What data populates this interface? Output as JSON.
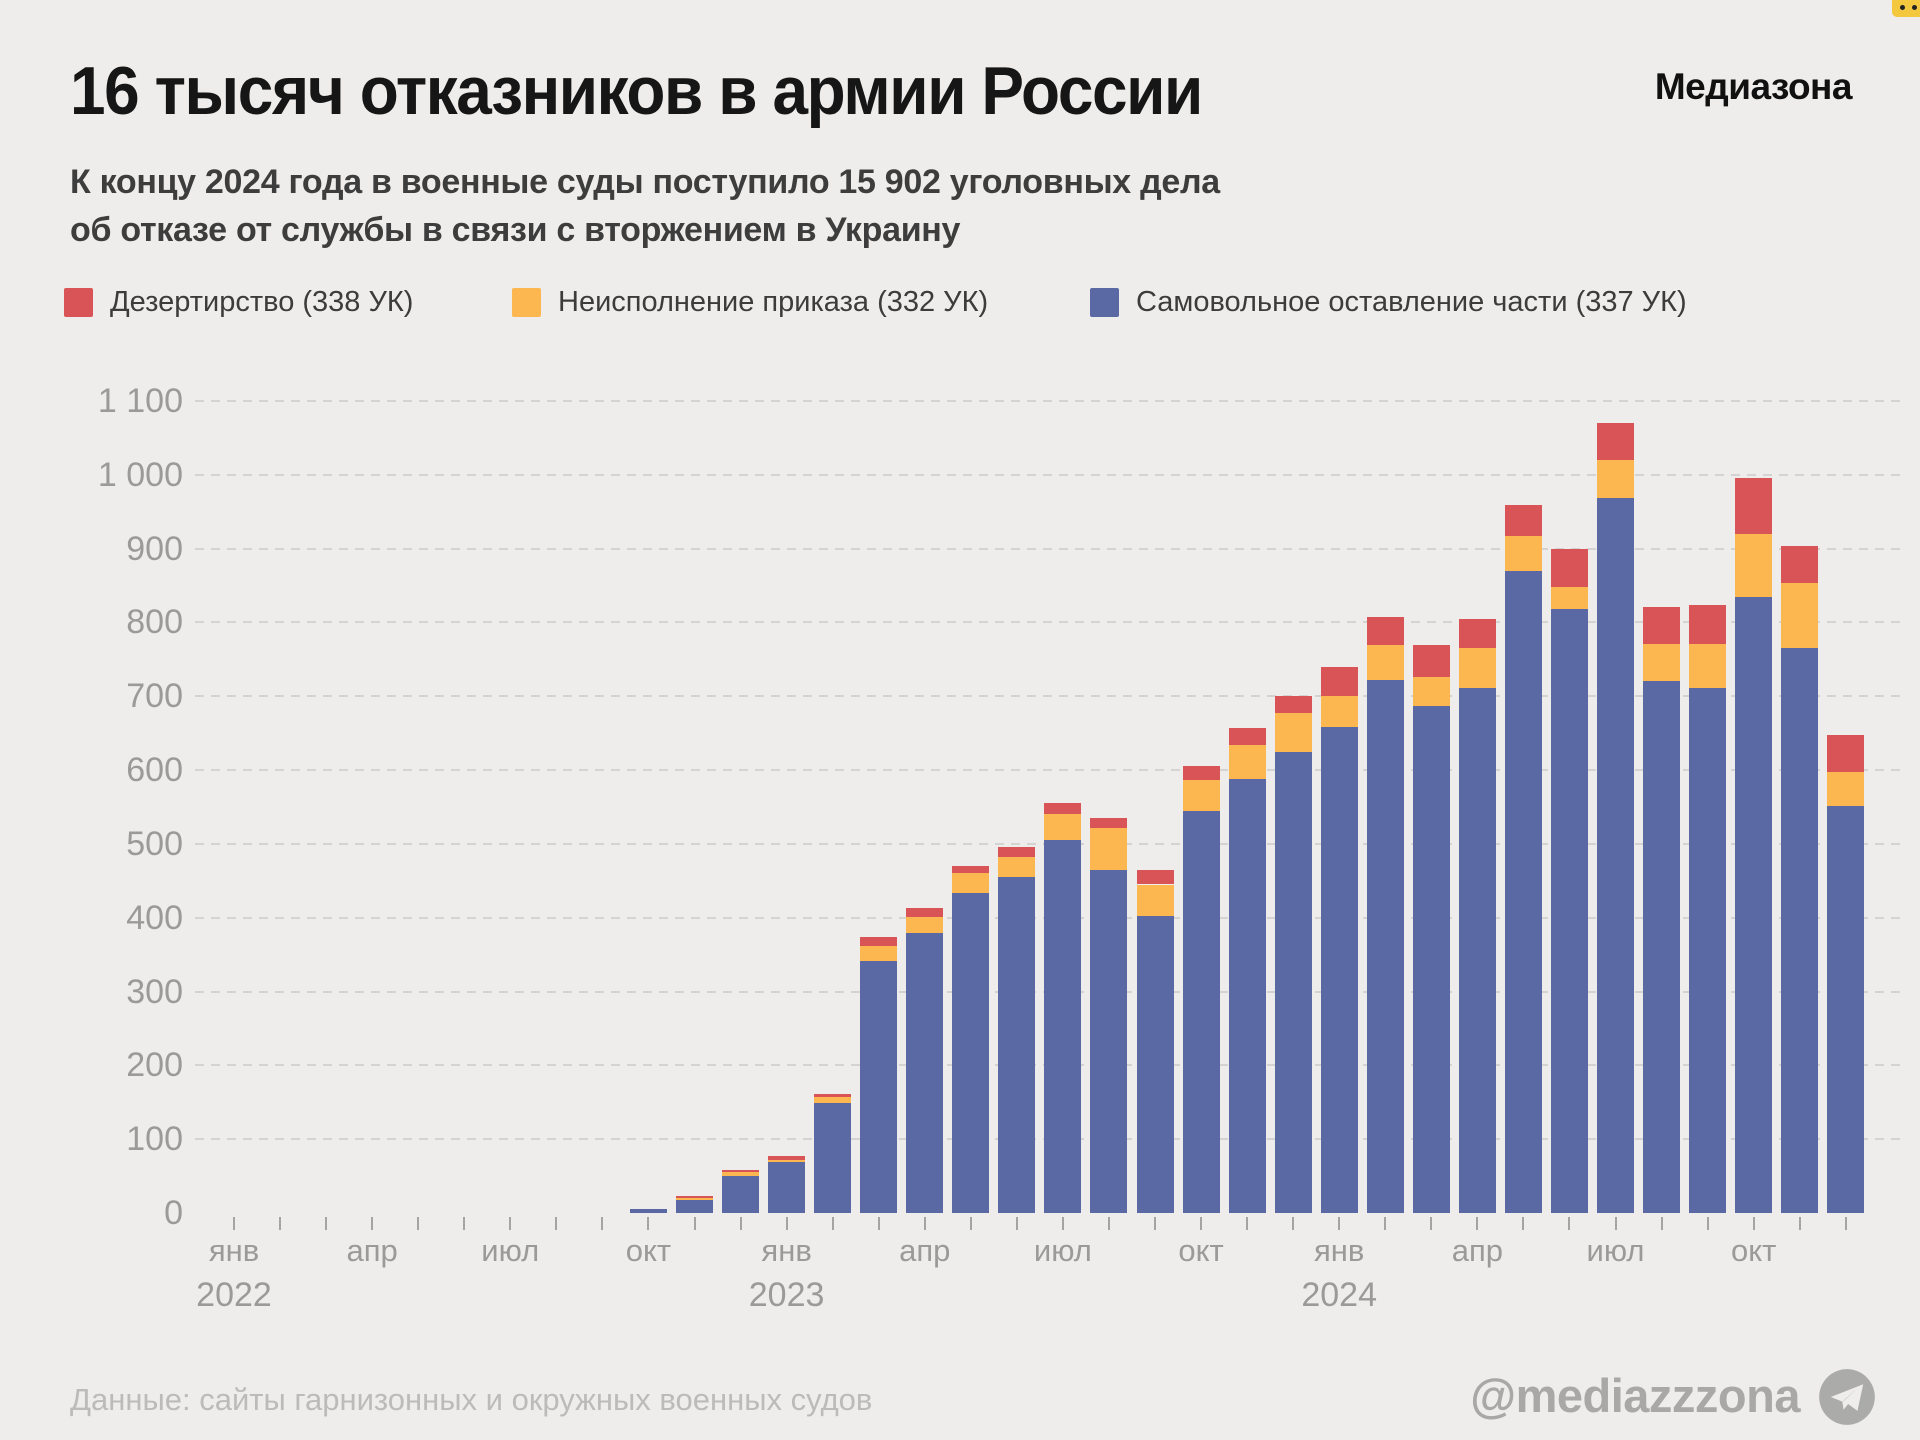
{
  "header": {
    "title": "16 тысяч отказников в армии России",
    "logo": "Медиазона",
    "subtitle_lines": [
      "К концу 2024 года в военные суды поступило 15 902 уголовных дела",
      "об отказе от службы в связи с вторжением в Украину"
    ]
  },
  "legend": {
    "items": [
      {
        "label": "Дезертирство (338 УК)",
        "color": "#D85456"
      },
      {
        "label": "Неисполнение приказа (332 УК)",
        "color": "#FDB750"
      },
      {
        "label": "Самовольное оставление части (337 УК)",
        "color": "#5A69A3"
      }
    ]
  },
  "chart_data": {
    "type": "bar",
    "stacked": true,
    "title": "16 тысяч отказников в армии России",
    "ylabel": "",
    "xlabel": "",
    "ylim": [
      0,
      1100
    ],
    "y_step": 100,
    "y_tick_labels": [
      "0",
      "100",
      "200",
      "300",
      "400",
      "500",
      "600",
      "700",
      "800",
      "900",
      "1 000",
      "1 100"
    ],
    "x_axis": {
      "months_total": 36,
      "first_month": "янв 2022",
      "labels": [
        {
          "m": 0,
          "label": "янв",
          "year": "2022"
        },
        {
          "m": 3,
          "label": "апр"
        },
        {
          "m": 6,
          "label": "июл"
        },
        {
          "m": 9,
          "label": "окт"
        },
        {
          "m": 12,
          "label": "янв",
          "year": "2023"
        },
        {
          "m": 15,
          "label": "апр"
        },
        {
          "m": 18,
          "label": "июл"
        },
        {
          "m": 21,
          "label": "окт"
        },
        {
          "m": 24,
          "label": "янв",
          "year": "2024"
        },
        {
          "m": 27,
          "label": "апр"
        },
        {
          "m": 30,
          "label": "июл"
        },
        {
          "m": 33,
          "label": "окт"
        }
      ]
    },
    "bars_start_month_index": 9,
    "categories": [
      "окт 2022",
      "ноя 2022",
      "дек 2022",
      "янв 2023",
      "фев 2023",
      "мар 2023",
      "апр 2023",
      "май 2023",
      "июн 2023",
      "июл 2023",
      "авг 2023",
      "сен 2023",
      "окт 2023",
      "ноя 2023",
      "дек 2023",
      "янв 2024",
      "фев 2024",
      "мар 2024",
      "апр 2024",
      "май 2024",
      "июн 2024",
      "июл 2024",
      "авг 2024",
      "сен 2024",
      "окт 2024",
      "ноя 2024",
      "дек 2024"
    ],
    "series": [
      {
        "name": "Самовольное оставление части (337 УК)",
        "article": "337",
        "color": "#5A69A3",
        "values": [
          5,
          18,
          50,
          69,
          149,
          342,
          379,
          433,
          455,
          505,
          465,
          402,
          545,
          588,
          625,
          659,
          722,
          687,
          711,
          870,
          818,
          969,
          721,
          711,
          835,
          766,
          552
        ]
      },
      {
        "name": "Неисполнение приказа (332 УК)",
        "article": "332",
        "color": "#FDB750",
        "values": [
          0,
          2,
          7,
          3,
          8,
          20,
          22,
          27,
          27,
          35,
          56,
          43,
          42,
          46,
          52,
          41,
          47,
          39,
          55,
          47,
          30,
          51,
          50,
          60,
          85,
          88,
          45
        ]
      },
      {
        "name": "Дезертирство (338 УК)",
        "article": "338",
        "color": "#D85456",
        "values": [
          0,
          3,
          1,
          5,
          4,
          12,
          12,
          10,
          14,
          15,
          14,
          19,
          19,
          23,
          24,
          39,
          39,
          43,
          39,
          42,
          51,
          50,
          50,
          53,
          76,
          50,
          51
        ]
      }
    ],
    "grid": "dashed horizontal",
    "legend_position": "top"
  },
  "footer": {
    "source": "Данные: сайты гарнизонных и окружных военных судов",
    "handle": "@mediazzzona",
    "telegram_icon": "telegram-icon"
  }
}
